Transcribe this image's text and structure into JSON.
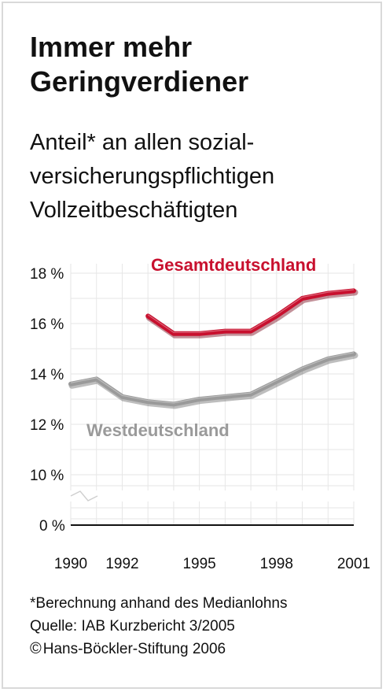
{
  "header": {
    "title_line1": "Immer mehr",
    "title_line2": "Geringverdiener",
    "subtitle_line1": "Anteil* an allen sozial-",
    "subtitle_line2": "versicherungspflichtigen",
    "subtitle_line3": "Vollzeitbeschäftigten"
  },
  "chart_data": {
    "type": "line",
    "ylim": [
      10,
      18
    ],
    "y_baseline_label": "0 %",
    "y_ticks": [
      "18 %",
      "16 %",
      "14 %",
      "12 %",
      "10 %"
    ],
    "y_tick_values": [
      18,
      16,
      14,
      12,
      10
    ],
    "x_ticks": [
      "1990",
      "1992",
      "1995",
      "1998",
      "2001"
    ],
    "x_tick_values": [
      1990,
      1992,
      1995,
      1998,
      2001
    ],
    "xlim": [
      1990,
      2001
    ],
    "axis_break": true,
    "grid": true,
    "series": [
      {
        "name": "Gesamtdeutschland",
        "color": "#c8102e",
        "x": [
          1993,
          1994,
          1995,
          1996,
          1997,
          1998,
          1999,
          2000,
          2001
        ],
        "values": [
          16.3,
          15.6,
          15.6,
          15.7,
          15.7,
          16.3,
          17.0,
          17.2,
          17.3
        ]
      },
      {
        "name": "Westdeutschland",
        "color": "#9a9a9a",
        "x": [
          1990,
          1991,
          1992,
          1993,
          1994,
          1995,
          1996,
          1997,
          1998,
          1999,
          2000,
          2001
        ],
        "values": [
          13.6,
          13.8,
          13.1,
          12.9,
          12.8,
          13.0,
          13.1,
          13.2,
          13.7,
          14.2,
          14.6,
          14.8
        ]
      }
    ]
  },
  "notes": {
    "line1": "*Berechnung anhand des Medianlohns",
    "line2": "Quelle: IAB Kurzbericht 3/2005",
    "line3_symbol": "©",
    "line3_text": "Hans-Böckler-Stiftung 2006"
  }
}
